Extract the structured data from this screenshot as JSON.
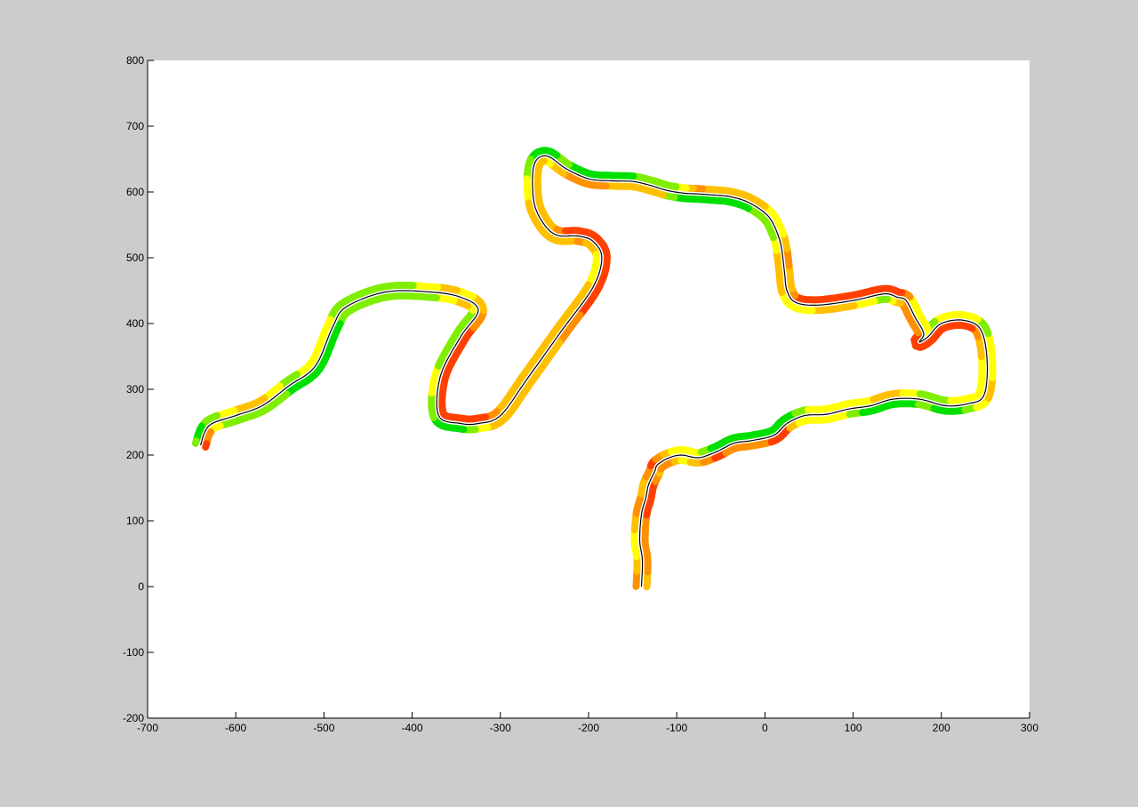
{
  "figure": {
    "background_color": "#cccccc",
    "axes_color": "#ffffff"
  },
  "chart_data": {
    "type": "line",
    "title": "",
    "xlabel": "",
    "ylabel": "",
    "xlim": [
      -700,
      300
    ],
    "ylim": [
      -200,
      800
    ],
    "grid": false,
    "legend": "none",
    "x_ticks": [
      -700,
      -600,
      -500,
      -400,
      -300,
      -200,
      -100,
      0,
      100,
      200,
      300
    ],
    "y_ticks": [
      -200,
      -100,
      0,
      100,
      200,
      300,
      400,
      500,
      600,
      700,
      800
    ],
    "series": [
      {
        "role": "track_centerline",
        "color": "#000000",
        "band_colors": [
          "#00e000",
          "#80ee00",
          "#ffff00",
          "#ffc000",
          "#ff9000",
          "#ff4000"
        ],
        "x": [
          -140,
          -139,
          -142,
          -140,
          -135,
          -132,
          -125,
          -122,
          -110,
          -95,
          -75,
          -55,
          -35,
          -15,
          10,
          25,
          45,
          70,
          95,
          120,
          145,
          175,
          205,
          230,
          248,
          252,
          245,
          225,
          200,
          185,
          175,
          180,
          170,
          160,
          150,
          135,
          100,
          60,
          35,
          25,
          22,
          18,
          10,
          0,
          -20,
          -40,
          -55,
          -75,
          -90,
          -110,
          -130,
          -150,
          -175,
          -200,
          -225,
          -248,
          -262,
          -262,
          -250,
          -235,
          -212,
          -195,
          -185,
          -195,
          -230,
          -270,
          -300,
          -325,
          -345,
          -370,
          -368,
          -345,
          -325,
          -345,
          -380,
          -430,
          -475,
          -490,
          -510,
          -540,
          -570,
          -600,
          -630,
          -640
        ],
        "y": [
          0,
          40,
          70,
          110,
          135,
          155,
          175,
          185,
          195,
          200,
          196,
          205,
          218,
          222,
          230,
          248,
          260,
          262,
          270,
          275,
          285,
          285,
          275,
          278,
          290,
          340,
          390,
          405,
          400,
          380,
          372,
          385,
          410,
          435,
          440,
          445,
          435,
          428,
          432,
          450,
          480,
          520,
          550,
          568,
          585,
          593,
          595,
          597,
          598,
          602,
          610,
          616,
          617,
          620,
          635,
          655,
          640,
          585,
          550,
          534,
          533,
          525,
          500,
          455,
          390,
          315,
          260,
          248,
          248,
          260,
          320,
          380,
          420,
          440,
          448,
          448,
          425,
          395,
          335,
          305,
          275,
          260,
          245,
          215
        ]
      }
    ]
  }
}
